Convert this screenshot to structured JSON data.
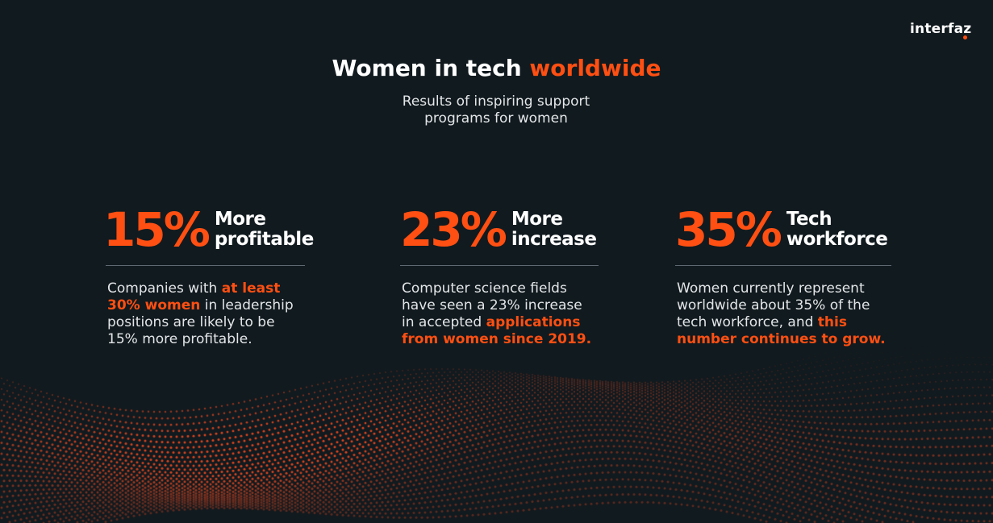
{
  "brand": {
    "logo_text": "interfaz",
    "accent_color": "#ff4f12",
    "background_color": "#111a1f"
  },
  "header": {
    "title_main": "Women in tech",
    "title_accent": "worldwide",
    "subtitle_line1": "Results of inspiring support",
    "subtitle_line2": "programs for women"
  },
  "stats": [
    {
      "value": "15%",
      "label_line1": "More",
      "label_line2": "profitable",
      "desc_parts": [
        {
          "text": "Companies with ",
          "highlight": false
        },
        {
          "text": "at least 30% women",
          "highlight": true
        },
        {
          "text": " in leadership positions are likely to be 15% more profitable.",
          "highlight": false
        }
      ]
    },
    {
      "value": "23%",
      "label_line1": "More",
      "label_line2": "increase",
      "desc_parts": [
        {
          "text": "Computer science fields have seen a 23% increase in accepted ",
          "highlight": false
        },
        {
          "text": "applications from women since 2019.",
          "highlight": true
        }
      ]
    },
    {
      "value": "35%",
      "label_line1": "Tech",
      "label_line2": "workforce",
      "desc_parts": [
        {
          "text": "Women currently represent worldwide about 35% of the tech workforce, and ",
          "highlight": false
        },
        {
          "text": "this number continues to grow.",
          "highlight": true
        }
      ]
    }
  ]
}
